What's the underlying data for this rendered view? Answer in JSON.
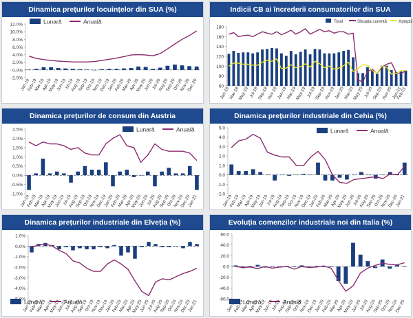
{
  "legend_labels": {
    "monthly": "Lunară",
    "annual": "Anuală",
    "total": "Total",
    "current": "Situația curentă",
    "expectations": "Așteptări"
  },
  "colors": {
    "header": "#1f4a8f",
    "bar": "#1a3f7e",
    "line": "#8b2c6f",
    "expect": "#e8e32a"
  },
  "chart_data": [
    {
      "id": "us_home",
      "type": "bar+line",
      "title": "Dinamica prețurilor locuințelor din SUA (%)",
      "categories": [
        "Jan-19",
        "Feb-19",
        "Mar-19",
        "Apr-19",
        "May-19",
        "Jun-19",
        "Jul-19",
        "Aug-19",
        "Sep-19",
        "Oct-19",
        "Nov-19",
        "Dec-19",
        "Jan-20",
        "Feb-20",
        "Mar-20",
        "Apr-20",
        "May-20",
        "Jun-20",
        "Jul-20",
        "Aug-20",
        "Sep-20",
        "Oct-20",
        "Nov-20",
        "Dec-20"
      ],
      "ylim": [
        -2,
        12
      ],
      "yticks": [
        "-2.0%",
        "0.0%",
        "2.0%",
        "4.0%",
        "6.0%",
        "8.0%",
        "10.0%",
        "12.0%"
      ],
      "ytick_values": [
        -2,
        0,
        2,
        4,
        6,
        8,
        10,
        12
      ],
      "series": [
        {
          "name": "Lunară",
          "type": "bar",
          "values": [
            0.1,
            0.3,
            0.7,
            0.7,
            0.5,
            0.4,
            0.3,
            0.2,
            0.1,
            0.0,
            0.2,
            0.3,
            0.3,
            0.4,
            0.5,
            0.9,
            0.8,
            0.3,
            0.6,
            1.1,
            1.4,
            1.2,
            1.0,
            0.9
          ]
        },
        {
          "name": "Anuală",
          "type": "line",
          "values": [
            3.6,
            3.0,
            2.7,
            2.5,
            2.3,
            2.2,
            2.1,
            2.1,
            2.1,
            2.2,
            2.5,
            2.8,
            3.1,
            3.5,
            3.9,
            4.0,
            3.9,
            3.7,
            4.3,
            5.5,
            6.8,
            8.0,
            9.0,
            10.2
          ]
        }
      ]
    },
    {
      "id": "us_cb",
      "type": "bar+line",
      "title": "Indicii CB ai încrederii consumatorilor din SUA",
      "categories": [
        "Jan-18",
        "Feb-18",
        "Mar-18",
        "Apr-18",
        "May-18",
        "Jun-18",
        "Jul-18",
        "Aug-18",
        "Sep-18",
        "Oct-18",
        "Nov-18",
        "Dec-18",
        "Jan-19",
        "Feb-19",
        "Mar-19",
        "Apr-19",
        "May-19",
        "Jun-19",
        "Jul-19",
        "Aug-19",
        "Sep-19",
        "Oct-19",
        "Nov-19",
        "Dec-19",
        "Jan-20",
        "Feb-20",
        "Mar-20",
        "Apr-20",
        "May-20",
        "Jun-20",
        "Jul-20",
        "Aug-20",
        "Sep-20",
        "Oct-20",
        "Nov-20",
        "Dec-20",
        "Jan-21",
        "Feb-21"
      ],
      "xticks": [
        "Jan-18",
        "Mar-18",
        "May-18",
        "Jul-18",
        "Sep-18",
        "Nov-18",
        "Jan-19",
        "Mar-19",
        "May-19",
        "Jul-19",
        "Sep-19",
        "Nov-19",
        "Jan-20",
        "Mar-20",
        "May-20",
        "Jul-20",
        "Sep-20",
        "Nov-20",
        "Jan-21",
        "Feb-21"
      ],
      "ylim": [
        60,
        180
      ],
      "yticks": [
        "60",
        "80",
        "100",
        "120",
        "140",
        "160",
        "180"
      ],
      "ytick_values": [
        60,
        80,
        100,
        120,
        140,
        160,
        180
      ],
      "series": [
        {
          "name": "Total",
          "type": "bar",
          "values": [
            125,
            131,
            127,
            128,
            128,
            126,
            128,
            134,
            135,
            137,
            136,
            126,
            121,
            131,
            124,
            129,
            134,
            124,
            135,
            134,
            126,
            126,
            126,
            128,
            131,
            133,
            118,
            86,
            86,
            98,
            92,
            84,
            101,
            101,
            92,
            88,
            89,
            91
          ]
        },
        {
          "name": "Situația curentă",
          "type": "line",
          "values": [
            165,
            168,
            160,
            162,
            163,
            160,
            165,
            170,
            167,
            165,
            170,
            164,
            168,
            173,
            165,
            170,
            176,
            165,
            170,
            175,
            170,
            172,
            167,
            170,
            170,
            165,
            167,
            72,
            68,
            89,
            94,
            85,
            98,
            104,
            107,
            87,
            85,
            91
          ]
        },
        {
          "name": "Așteptări",
          "type": "line",
          "values": [
            100,
            106,
            106,
            104,
            104,
            102,
            102,
            108,
            112,
            110,
            115,
            95,
            96,
            103,
            97,
            99,
            105,
            98,
            110,
            105,
            97,
            100,
            94,
            96,
            101,
            108,
            89,
            95,
            103,
            102,
            91,
            86,
            100,
            98,
            84,
            85,
            91,
            91
          ]
        }
      ]
    },
    {
      "id": "austria_cpi",
      "type": "bar+line",
      "title": "Dinamica prețurilor de consum din Austria",
      "categories": [
        "Jan-19",
        "Feb-19",
        "Mar-19",
        "Apr-19",
        "May-19",
        "Jun-19",
        "Jul-19",
        "Aug-19",
        "Sep-19",
        "Oct-19",
        "Nov-19",
        "Dec-19",
        "Jan-20",
        "Feb-20",
        "Mar-20",
        "Apr-20",
        "May-20",
        "Jun-20",
        "Jul-20",
        "Aug-20",
        "Sep-20",
        "Oct-20",
        "Nov-20",
        "Dec-20",
        "Jan-21"
      ],
      "ylim": [
        -1,
        2.5
      ],
      "yticks": [
        "-1.0%",
        "-0.5%",
        "0.0%",
        "0.5%",
        "1.0%",
        "1.5%",
        "2.0%",
        "2.5%"
      ],
      "ytick_values": [
        -1,
        -0.5,
        0,
        0.5,
        1,
        1.5,
        2,
        2.5
      ],
      "series": [
        {
          "name": "Lunară",
          "type": "bar",
          "values": [
            -0.8,
            0.1,
            0.9,
            0.1,
            0.2,
            0.1,
            -0.4,
            0.2,
            0.5,
            0.3,
            0.3,
            0.7,
            -0.6,
            0.2,
            0.3,
            -0.1,
            0.0,
            0.2,
            -0.6,
            0.2,
            0.4,
            0.1,
            0.1,
            0.5,
            -0.8
          ]
        },
        {
          "name": "Anuală",
          "type": "line",
          "values": [
            1.8,
            1.6,
            1.8,
            1.7,
            1.7,
            1.6,
            1.4,
            1.5,
            1.2,
            1.1,
            1.1,
            1.7,
            2.0,
            2.2,
            1.6,
            1.5,
            0.7,
            1.1,
            1.7,
            1.4,
            1.3,
            1.3,
            1.3,
            1.2,
            0.8
          ]
        }
      ]
    },
    {
      "id": "czech_ppi",
      "type": "bar+line",
      "title": "Dinamica prețurilor industriale din Cehia (%)",
      "categories": [
        "Jan-19",
        "Feb-19",
        "Mar-19",
        "Apr-19",
        "May-19",
        "Jun-19",
        "Jul-19",
        "Aug-19",
        "Sep-19",
        "Oct-19",
        "Nov-19",
        "Dec-19",
        "Jan-20",
        "Feb-20",
        "Mar-20",
        "Apr-20",
        "May-20",
        "Jun-20",
        "Jul-20",
        "Aug-20",
        "Sep-20",
        "Oct-20",
        "Nov-20",
        "Dec-20",
        "Jan-21"
      ],
      "ylim": [
        -2,
        5
      ],
      "yticks": [
        "-2.0",
        "-1.0",
        "0.0",
        "1.0",
        "2.0",
        "3.0",
        "4.0",
        "5.0"
      ],
      "ytick_values": [
        -2,
        -1,
        0,
        1,
        2,
        3,
        4,
        5
      ],
      "series": [
        {
          "name": "Lunară",
          "type": "bar",
          "values": [
            1.1,
            0.4,
            0.4,
            0.6,
            0.3,
            0.0,
            -0.6,
            0.0,
            -0.1,
            0.0,
            0.1,
            0.0,
            1.3,
            -0.6,
            -0.6,
            -0.3,
            -0.5,
            0.0,
            0.3,
            0.0,
            -0.4,
            0.0,
            0.3,
            0.1,
            1.3
          ]
        },
        {
          "name": "Anuală",
          "type": "line",
          "values": [
            2.9,
            3.6,
            3.8,
            4.3,
            3.9,
            2.4,
            2.1,
            1.9,
            1.9,
            1.0,
            1.0,
            1.9,
            2.5,
            1.6,
            0.0,
            -0.8,
            -0.9,
            -0.5,
            -0.4,
            -0.3,
            -0.2,
            -0.4,
            0.1,
            0.0,
            0.9
          ]
        }
      ]
    },
    {
      "id": "swiss_ppi",
      "type": "bar+line",
      "title": "Dinamica prețurilor industriale din Elveția (%)",
      "categories": [
        "Jan-19",
        "Feb-19",
        "Mar-19",
        "Apr-19",
        "May-19",
        "Jun-19",
        "Jul-19",
        "Aug-19",
        "Sep-19",
        "Oct-19",
        "Nov-19",
        "Dec-19",
        "Jan-20",
        "Feb-20",
        "Mar-20",
        "Apr-20",
        "May-20",
        "Jun-20",
        "Jul-20",
        "Aug-20",
        "Sep-20",
        "Oct-20",
        "Nov-20",
        "Dec-20",
        "Jan-21"
      ],
      "ylim": [
        -5,
        1
      ],
      "yticks": [
        "-5.0%",
        "-4.0%",
        "-3.0%",
        "-2.0%",
        "-1.0%",
        "0.0%",
        "1.0%"
      ],
      "ytick_values": [
        -5,
        -4,
        -3,
        -2,
        -1,
        0,
        1
      ],
      "series": [
        {
          "name": "Lunară",
          "type": "bar",
          "values": [
            -0.6,
            0.2,
            0.3,
            0.1,
            -0.3,
            -0.1,
            -0.4,
            -0.2,
            -0.3,
            -0.3,
            -0.1,
            -0.2,
            0.1,
            -0.9,
            -0.6,
            -1.2,
            -0.1,
            0.4,
            0.2,
            -0.1,
            -0.1,
            0.0,
            -0.2,
            0.4,
            0.2
          ]
        },
        {
          "name": "Anuală",
          "type": "line",
          "values": [
            -0.1,
            0.1,
            0.2,
            0.0,
            -0.4,
            -0.7,
            -1.4,
            -1.6,
            -2.1,
            -2.4,
            -2.4,
            -1.7,
            -1.3,
            -1.7,
            -2.2,
            -3.3,
            -4.3,
            -4.7,
            -3.4,
            -3.1,
            -3.2,
            -2.9,
            -2.6,
            -2.4,
            -2.1
          ]
        }
      ]
    },
    {
      "id": "italy_orders",
      "type": "bar+line",
      "title": "Evoluția comenzilor industriale noi din Italia (%)",
      "categories": [
        "Jan-19",
        "Feb-19",
        "Mar-19",
        "Apr-19",
        "May-19",
        "Jun-19",
        "Jul-19",
        "Aug-19",
        "Sep-19",
        "Oct-19",
        "Nov-19",
        "Dec-19",
        "Jan-20",
        "Feb-20",
        "Mar-20",
        "Apr-20",
        "May-20",
        "Jun-20",
        "Jul-20",
        "Aug-20",
        "Sep-20",
        "Oct-20",
        "Nov-20",
        "Dec-20"
      ],
      "ylim": [
        -60,
        60
      ],
      "yticks": [
        "-60.0",
        "-40.0",
        "-20.0",
        "0.0",
        "20.0",
        "40.0",
        "60.0"
      ],
      "ytick_values": [
        -60,
        -40,
        -20,
        0,
        20,
        40,
        60
      ],
      "series": [
        {
          "name": "Lunară",
          "type": "bar",
          "values": [
            2,
            -3,
            1,
            3,
            -2,
            1,
            -2,
            1,
            -1,
            2,
            -1,
            1,
            -1,
            1,
            -27,
            -32,
            44,
            22,
            10,
            -3,
            13,
            -4,
            3,
            1
          ]
        },
        {
          "name": "Anuală",
          "type": "line",
          "values": [
            0,
            -2,
            -1,
            -4,
            0,
            -3,
            -1,
            0,
            -5,
            0,
            -2,
            -1,
            1,
            -3,
            -26,
            -46,
            -36,
            -12,
            -3,
            2,
            6,
            4,
            3,
            7
          ]
        }
      ]
    }
  ]
}
